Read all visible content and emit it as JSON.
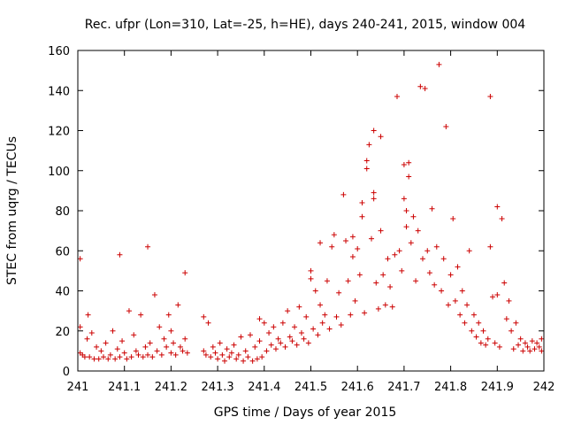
{
  "chart_data": {
    "type": "scatter",
    "title": "Rec. ufpr (Lon=310, Lat=-25, h=HE), days 240-241, 2015, window 004",
    "xlabel": "GPS time / Days of year 2015",
    "ylabel": "STEC from uqrg / TECUs",
    "xlim": [
      241,
      242
    ],
    "ylim": [
      0,
      160
    ],
    "xticks": [
      "241",
      "241.1",
      "241.2",
      "241.3",
      "241.4",
      "241.5",
      "241.6",
      "241.7",
      "241.8",
      "241.9",
      "242"
    ],
    "yticks": [
      "0",
      "20",
      "40",
      "60",
      "80",
      "100",
      "120",
      "140",
      "160"
    ],
    "grid": false,
    "marker": "+",
    "color": "#cc0000",
    "points": [
      [
        241.005,
        56
      ],
      [
        241.005,
        22
      ],
      [
        241.005,
        9
      ],
      [
        241.01,
        8
      ],
      [
        241.015,
        7
      ],
      [
        241.02,
        16
      ],
      [
        241.022,
        28
      ],
      [
        241.025,
        7
      ],
      [
        241.03,
        19
      ],
      [
        241.035,
        6
      ],
      [
        241.04,
        12
      ],
      [
        241.045,
        6
      ],
      [
        241.05,
        10
      ],
      [
        241.055,
        7
      ],
      [
        241.06,
        14
      ],
      [
        241.065,
        6
      ],
      [
        241.07,
        8
      ],
      [
        241.075,
        20
      ],
      [
        241.08,
        6
      ],
      [
        241.085,
        11
      ],
      [
        241.09,
        58
      ],
      [
        241.09,
        7
      ],
      [
        241.095,
        15
      ],
      [
        241.1,
        9
      ],
      [
        241.105,
        6
      ],
      [
        241.11,
        30
      ],
      [
        241.115,
        7
      ],
      [
        241.12,
        18
      ],
      [
        241.125,
        10
      ],
      [
        241.13,
        8
      ],
      [
        241.135,
        28
      ],
      [
        241.14,
        7
      ],
      [
        241.145,
        12
      ],
      [
        241.15,
        62
      ],
      [
        241.15,
        8
      ],
      [
        241.155,
        14
      ],
      [
        241.16,
        7
      ],
      [
        241.165,
        38
      ],
      [
        241.17,
        10
      ],
      [
        241.175,
        22
      ],
      [
        241.18,
        8
      ],
      [
        241.185,
        16
      ],
      [
        241.19,
        12
      ],
      [
        241.195,
        28
      ],
      [
        241.2,
        9
      ],
      [
        241.2,
        20
      ],
      [
        241.205,
        14
      ],
      [
        241.21,
        8
      ],
      [
        241.215,
        33
      ],
      [
        241.22,
        12
      ],
      [
        241.225,
        10
      ],
      [
        241.23,
        49
      ],
      [
        241.23,
        16
      ],
      [
        241.235,
        9
      ],
      [
        241.27,
        27
      ],
      [
        241.27,
        10
      ],
      [
        241.275,
        8
      ],
      [
        241.28,
        24
      ],
      [
        241.285,
        7
      ],
      [
        241.29,
        12
      ],
      [
        241.295,
        9
      ],
      [
        241.3,
        6
      ],
      [
        241.305,
        14
      ],
      [
        241.31,
        8
      ],
      [
        241.315,
        5
      ],
      [
        241.32,
        11
      ],
      [
        241.325,
        7
      ],
      [
        241.33,
        9
      ],
      [
        241.335,
        13
      ],
      [
        241.34,
        6
      ],
      [
        241.345,
        8
      ],
      [
        241.35,
        17
      ],
      [
        241.355,
        5
      ],
      [
        241.36,
        10
      ],
      [
        241.365,
        7
      ],
      [
        241.37,
        18
      ],
      [
        241.375,
        5
      ],
      [
        241.38,
        12
      ],
      [
        241.385,
        6
      ],
      [
        241.39,
        26
      ],
      [
        241.39,
        15
      ],
      [
        241.395,
        7
      ],
      [
        241.4,
        24
      ],
      [
        241.405,
        10
      ],
      [
        241.41,
        19
      ],
      [
        241.415,
        13
      ],
      [
        241.42,
        22
      ],
      [
        241.425,
        11
      ],
      [
        241.43,
        16
      ],
      [
        241.435,
        14
      ],
      [
        241.44,
        24
      ],
      [
        241.445,
        12
      ],
      [
        241.45,
        30
      ],
      [
        241.455,
        17
      ],
      [
        241.46,
        15
      ],
      [
        241.465,
        22
      ],
      [
        241.47,
        13
      ],
      [
        241.475,
        32
      ],
      [
        241.48,
        19
      ],
      [
        241.485,
        16
      ],
      [
        241.49,
        27
      ],
      [
        241.495,
        14
      ],
      [
        241.5,
        50
      ],
      [
        241.5,
        46
      ],
      [
        241.505,
        21
      ],
      [
        241.51,
        40
      ],
      [
        241.515,
        18
      ],
      [
        241.52,
        64
      ],
      [
        241.52,
        33
      ],
      [
        241.525,
        24
      ],
      [
        241.53,
        28
      ],
      [
        241.535,
        45
      ],
      [
        241.54,
        21
      ],
      [
        241.545,
        62
      ],
      [
        241.55,
        68
      ],
      [
        241.555,
        27
      ],
      [
        241.56,
        39
      ],
      [
        241.565,
        23
      ],
      [
        241.57,
        88
      ],
      [
        241.575,
        65
      ],
      [
        241.58,
        45
      ],
      [
        241.585,
        28
      ],
      [
        241.59,
        67
      ],
      [
        241.59,
        57
      ],
      [
        241.595,
        35
      ],
      [
        241.6,
        61
      ],
      [
        241.605,
        48
      ],
      [
        241.61,
        84
      ],
      [
        241.61,
        77
      ],
      [
        241.615,
        29
      ],
      [
        241.62,
        101
      ],
      [
        241.62,
        105
      ],
      [
        241.625,
        113
      ],
      [
        241.63,
        66
      ],
      [
        241.635,
        120
      ],
      [
        241.635,
        89
      ],
      [
        241.635,
        86
      ],
      [
        241.64,
        44
      ],
      [
        241.645,
        31
      ],
      [
        241.65,
        117
      ],
      [
        241.65,
        70
      ],
      [
        241.655,
        48
      ],
      [
        241.66,
        33
      ],
      [
        241.665,
        56
      ],
      [
        241.67,
        42
      ],
      [
        241.675,
        32
      ],
      [
        241.68,
        58
      ],
      [
        241.685,
        137
      ],
      [
        241.69,
        60
      ],
      [
        241.695,
        50
      ],
      [
        241.7,
        103
      ],
      [
        241.7,
        86
      ],
      [
        241.705,
        80
      ],
      [
        241.705,
        72
      ],
      [
        241.71,
        104
      ],
      [
        241.71,
        97
      ],
      [
        241.715,
        64
      ],
      [
        241.72,
        77
      ],
      [
        241.725,
        45
      ],
      [
        241.73,
        70
      ],
      [
        241.735,
        142
      ],
      [
        241.74,
        56
      ],
      [
        241.745,
        141
      ],
      [
        241.75,
        60
      ],
      [
        241.755,
        49
      ],
      [
        241.76,
        81
      ],
      [
        241.765,
        43
      ],
      [
        241.77,
        62
      ],
      [
        241.775,
        153
      ],
      [
        241.78,
        40
      ],
      [
        241.785,
        56
      ],
      [
        241.79,
        122
      ],
      [
        241.795,
        33
      ],
      [
        241.8,
        48
      ],
      [
        241.805,
        76
      ],
      [
        241.81,
        35
      ],
      [
        241.815,
        52
      ],
      [
        241.82,
        28
      ],
      [
        241.825,
        40
      ],
      [
        241.83,
        24
      ],
      [
        241.835,
        33
      ],
      [
        241.84,
        60
      ],
      [
        241.845,
        20
      ],
      [
        241.85,
        28
      ],
      [
        241.855,
        17
      ],
      [
        241.86,
        24
      ],
      [
        241.865,
        14
      ],
      [
        241.87,
        20
      ],
      [
        241.875,
        13
      ],
      [
        241.88,
        16
      ],
      [
        241.885,
        137
      ],
      [
        241.885,
        62
      ],
      [
        241.89,
        37
      ],
      [
        241.895,
        14
      ],
      [
        241.9,
        82
      ],
      [
        241.9,
        38
      ],
      [
        241.905,
        12
      ],
      [
        241.91,
        76
      ],
      [
        241.915,
        44
      ],
      [
        241.92,
        26
      ],
      [
        241.925,
        35
      ],
      [
        241.93,
        20
      ],
      [
        241.935,
        11
      ],
      [
        241.94,
        24
      ],
      [
        241.945,
        13
      ],
      [
        241.95,
        16
      ],
      [
        241.955,
        10
      ],
      [
        241.96,
        14
      ],
      [
        241.965,
        12
      ],
      [
        241.97,
        10
      ],
      [
        241.975,
        15
      ],
      [
        241.98,
        11
      ],
      [
        241.985,
        14
      ],
      [
        241.99,
        12
      ],
      [
        241.995,
        16
      ],
      [
        241.995,
        10
      ]
    ]
  }
}
